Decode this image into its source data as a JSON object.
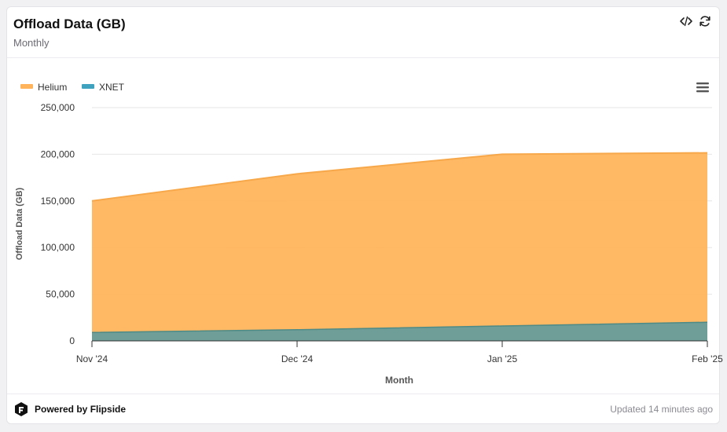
{
  "header": {
    "title": "Offload Data (GB)",
    "subtitle": "Monthly",
    "embed_icon": "code-icon",
    "refresh_icon": "refresh-icon"
  },
  "watermark": {
    "text": "flipside"
  },
  "footer": {
    "powered_by": "Powered by Flipside",
    "updated": "Updated 14 minutes ago"
  },
  "colors": {
    "helium": "#FFB45C",
    "helium_line": "#F7A84A",
    "xnet": "#6E9E97",
    "xnet_line": "#4E8A86",
    "xnet_legend": "#3FA3C0"
  },
  "chart_data": {
    "type": "area",
    "stacked": true,
    "categories": [
      "Nov '24",
      "Dec '24",
      "Jan '25",
      "Feb '25"
    ],
    "series": [
      {
        "name": "Helium",
        "values": [
          141000,
          167000,
          184000,
          181500
        ]
      },
      {
        "name": "XNET",
        "values": [
          9000,
          12000,
          16000,
          20000
        ]
      }
    ],
    "xlabel": "Month",
    "ylabel": "Offload Data (GB)",
    "ylim": [
      0,
      250000
    ],
    "yticks": [
      0,
      50000,
      100000,
      150000,
      200000,
      250000
    ],
    "ytick_labels": [
      "0",
      "50,000",
      "100,000",
      "150,000",
      "200,000",
      "250,000"
    ],
    "grid": true,
    "legend_position": "top-left"
  }
}
